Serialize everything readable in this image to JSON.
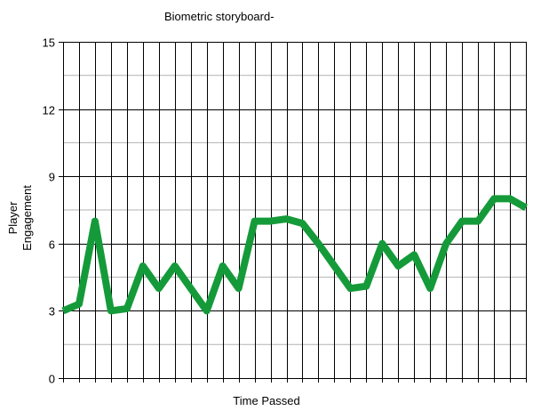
{
  "chart_data": {
    "type": "line",
    "title": "Biometric storyboard-",
    "xlabel": "Time Passed",
    "ylabel": "Player Engagement",
    "ylabel_lines": [
      "Player",
      "Engagement"
    ],
    "ylim": [
      0,
      15
    ],
    "yticks": [
      "0",
      "3",
      "6",
      "9",
      "12",
      "15"
    ],
    "grid": true,
    "legend": "none",
    "x": [
      0,
      1,
      2,
      3,
      4,
      5,
      6,
      7,
      8,
      9,
      10,
      11,
      12,
      13,
      14,
      15,
      16,
      17,
      18,
      19,
      20,
      21,
      22,
      23,
      24,
      25,
      26,
      27,
      28,
      29
    ],
    "series": [
      {
        "values": [
          3.0,
          3.3,
          7.0,
          3.0,
          3.1,
          5.0,
          4.0,
          5.0,
          4.0,
          3.0,
          5.0,
          4.0,
          7.0,
          7.0,
          7.1,
          6.9,
          6.0,
          5.0,
          4.0,
          4.1,
          6.0,
          5.0,
          5.5,
          4.0,
          6.0,
          7.0,
          7.0,
          8.0,
          8.0,
          7.6
        ],
        "color": "#159a3a"
      }
    ]
  }
}
